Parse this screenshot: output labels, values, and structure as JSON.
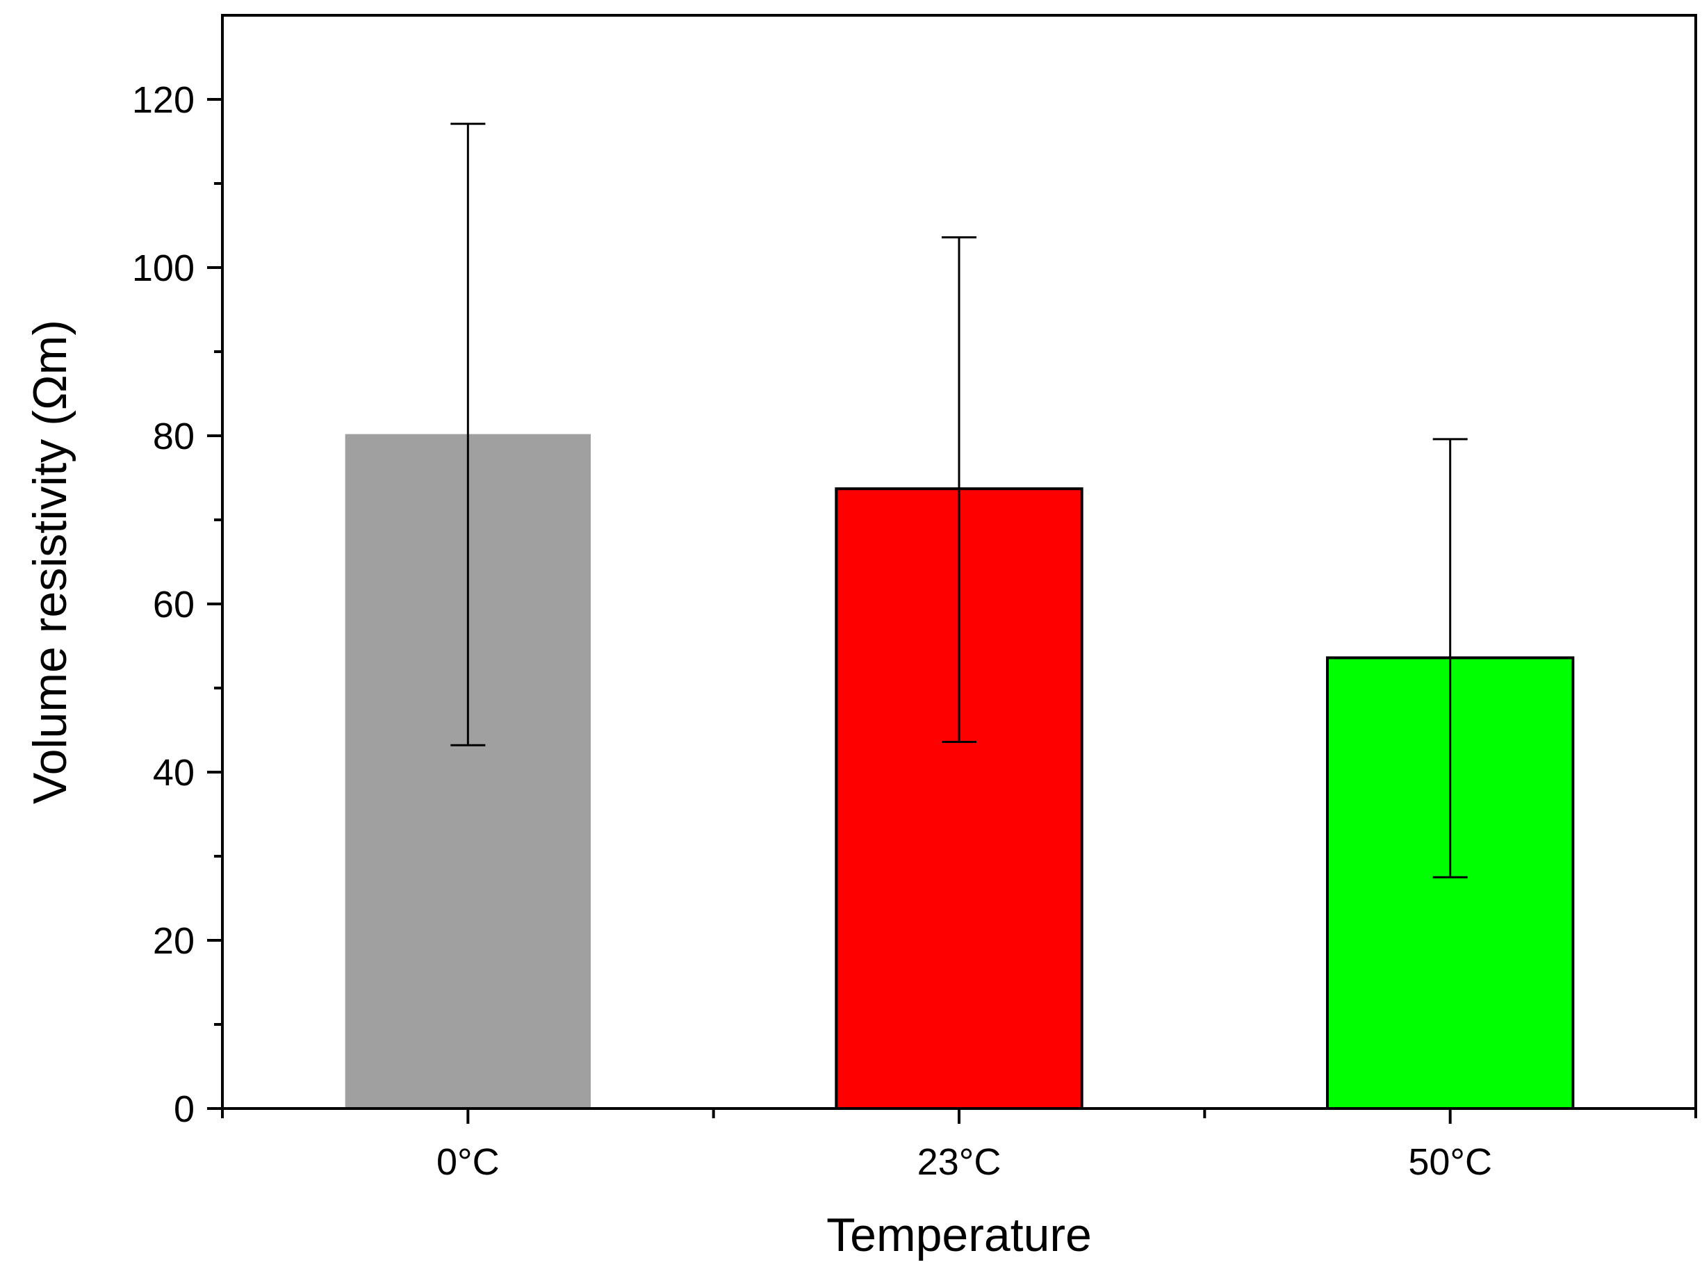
{
  "chart_data": {
    "type": "bar",
    "title": "",
    "xlabel": "Temperature",
    "ylabel": "Volume resistivity (Ωm)",
    "categories": [
      "0°C",
      "23°C",
      "50°C"
    ],
    "values": [
      80.2,
      73.7,
      53.6
    ],
    "error_high": [
      117.1,
      103.6,
      79.6
    ],
    "error_low": [
      43.2,
      43.6,
      27.5
    ],
    "colors": [
      "#a0a0a0",
      "#ff0000",
      "#00ff00"
    ],
    "bar_outline": [
      false,
      true,
      true
    ],
    "ylim": [
      0,
      130
    ],
    "yticks": [
      0,
      20,
      40,
      60,
      80,
      100,
      120
    ],
    "ytick_labels": [
      "0",
      "20",
      "40",
      "60",
      "80",
      "100",
      "120"
    ],
    "grid": false,
    "legend": "none"
  }
}
